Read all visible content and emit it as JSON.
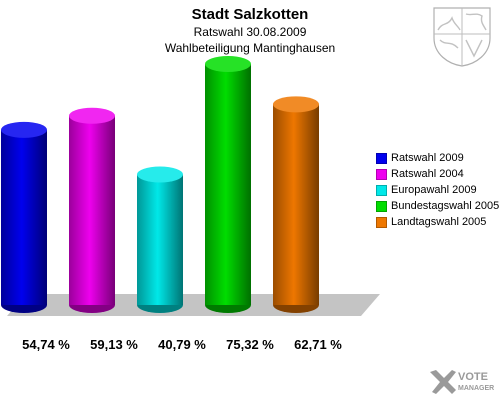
{
  "header": {
    "title": "Stadt Salzkotten",
    "subtitle": "Ratswahl 30.08.2009",
    "subtitle2": "Wahlbeteiligung Mantinghausen"
  },
  "chart_data": {
    "type": "bar",
    "title": "Stadt Salzkotten",
    "subtitle": "Ratswahl 30.08.2009 – Wahlbeteiligung Mantinghausen",
    "categories": [
      "Ratswahl 2009",
      "Ratswahl 2004",
      "Europawahl 2009",
      "Bundestagswahl 2005",
      "Landtagswahl 2005"
    ],
    "values": [
      54.74,
      59.13,
      40.79,
      75.32,
      62.71
    ],
    "value_labels": [
      "54,74 %",
      "59,13 %",
      "40,79 %",
      "75,32 %",
      "62,71 %"
    ],
    "colors": [
      "#0000ee",
      "#ee00ee",
      "#00e8e8",
      "#00dd00",
      "#ee7700"
    ],
    "ylim": [
      0,
      100
    ],
    "xlabel": "",
    "ylabel": "",
    "grid": false,
    "legend_position": "right"
  },
  "legend": {
    "items": [
      {
        "label": "Ratswahl 2009",
        "color": "#0000ee"
      },
      {
        "label": "Ratswahl 2004",
        "color": "#ee00ee"
      },
      {
        "label": "Europawahl 2009",
        "color": "#00e8e8"
      },
      {
        "label": "Bundestagswahl 2005",
        "color": "#00dd00"
      },
      {
        "label": "Landtagswahl 2005",
        "color": "#ee7700"
      }
    ]
  },
  "branding": {
    "logo_line1": "VOTE",
    "logo_line2": "MANAGER",
    "crest_icon": "coat-of-arms-icon"
  }
}
